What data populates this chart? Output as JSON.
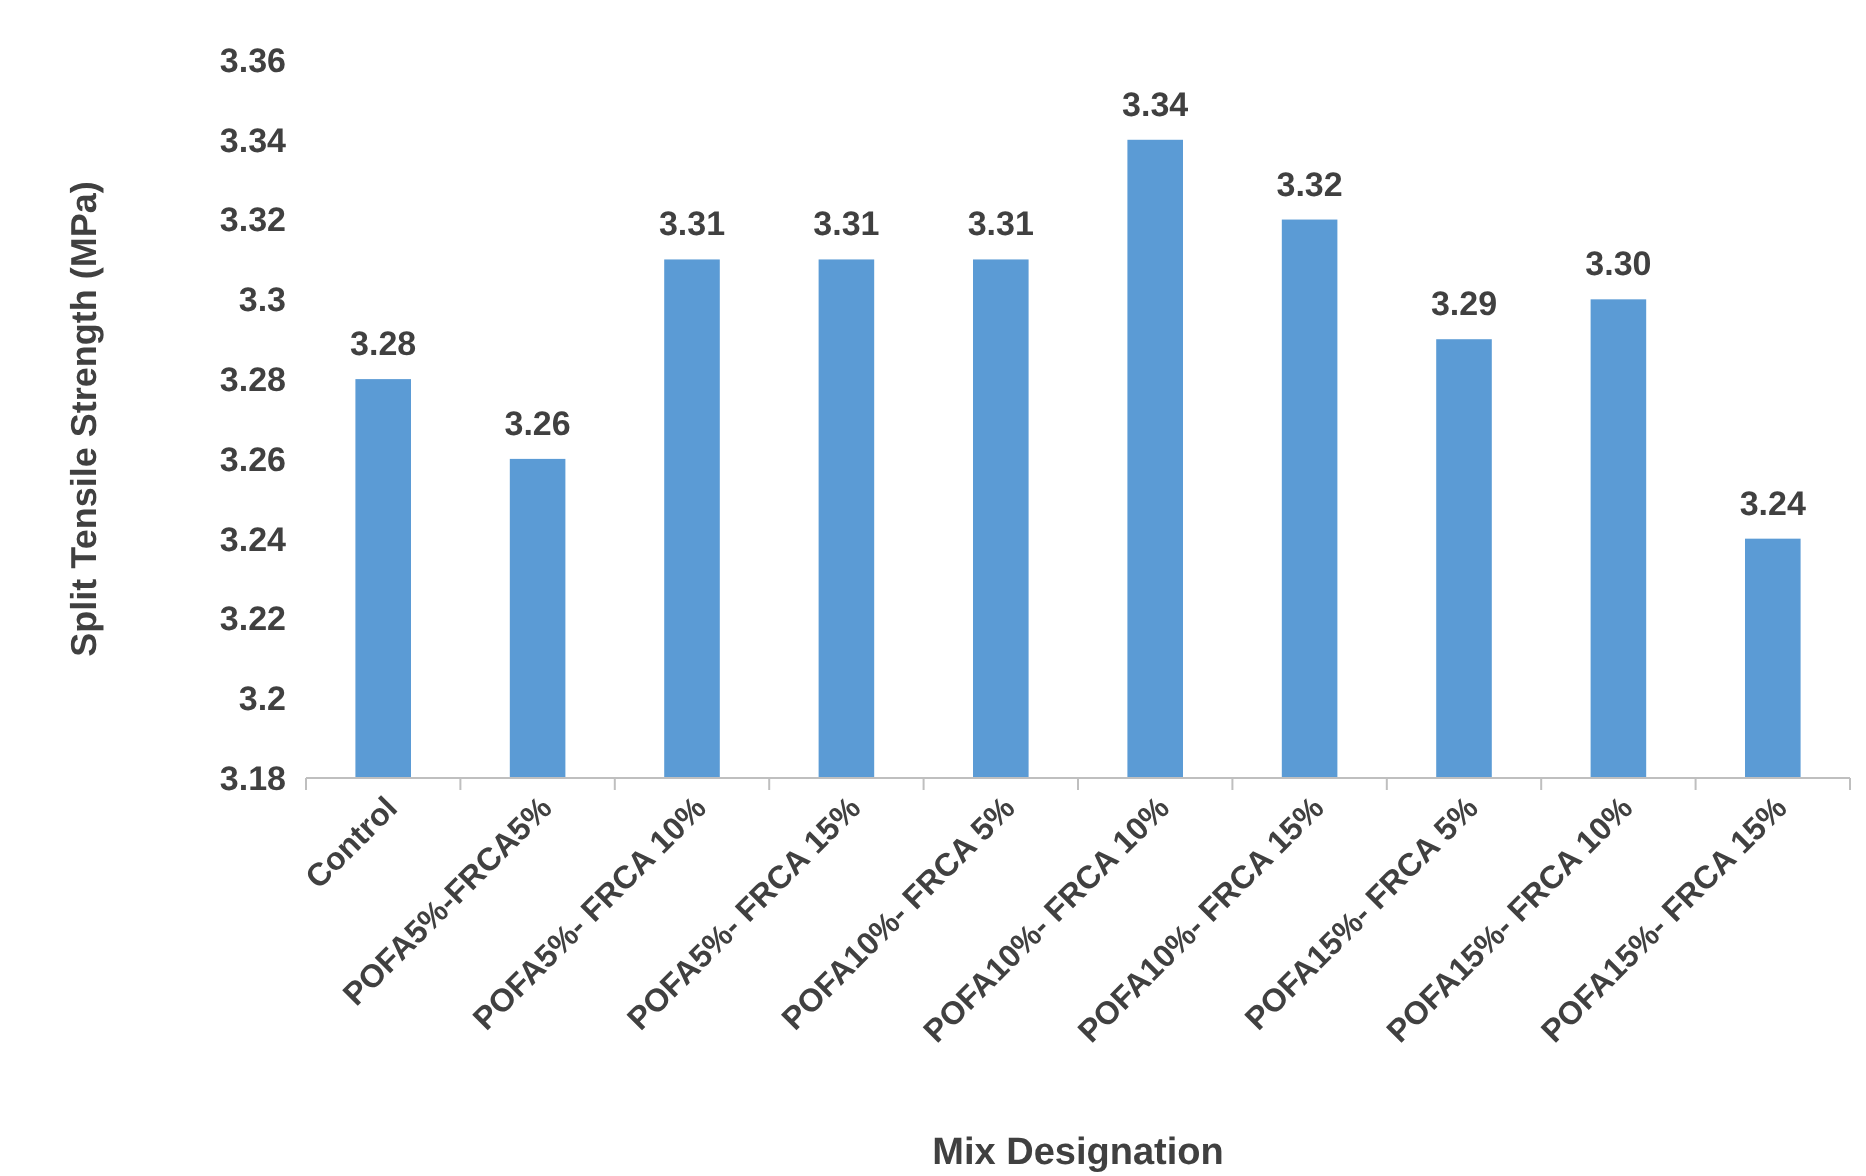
{
  "chart_data": {
    "type": "bar",
    "xlabel": "Mix Designation",
    "ylabel": "Split Tensile Strength (MPa)",
    "categories": [
      "Control",
      "POFA5%-FRCA5%",
      "POFA5%- FRCA 10%",
      "POFA5%- FRCA 15%",
      "POFA10%- FRCA 5%",
      "POFA10%- FRCA 10%",
      "POFA10%- FRCA 15%",
      "POFA15%- FRCA 5%",
      "POFA15%- FRCA 10%",
      "POFA15%- FRCA 15%"
    ],
    "values": [
      3.28,
      3.26,
      3.31,
      3.31,
      3.31,
      3.34,
      3.32,
      3.29,
      3.3,
      3.24
    ],
    "value_labels": [
      "3.28",
      "3.26",
      "3.31",
      "3.31",
      "3.31",
      "3.34",
      "3.32",
      "3.29",
      "3.30",
      "3.24"
    ],
    "color": "#5b9bd5",
    "ylim": [
      3.18,
      3.36
    ],
    "yticks": [
      3.18,
      3.2,
      3.22,
      3.24,
      3.26,
      3.28,
      3.3,
      3.32,
      3.34,
      3.36
    ],
    "grid": false
  }
}
